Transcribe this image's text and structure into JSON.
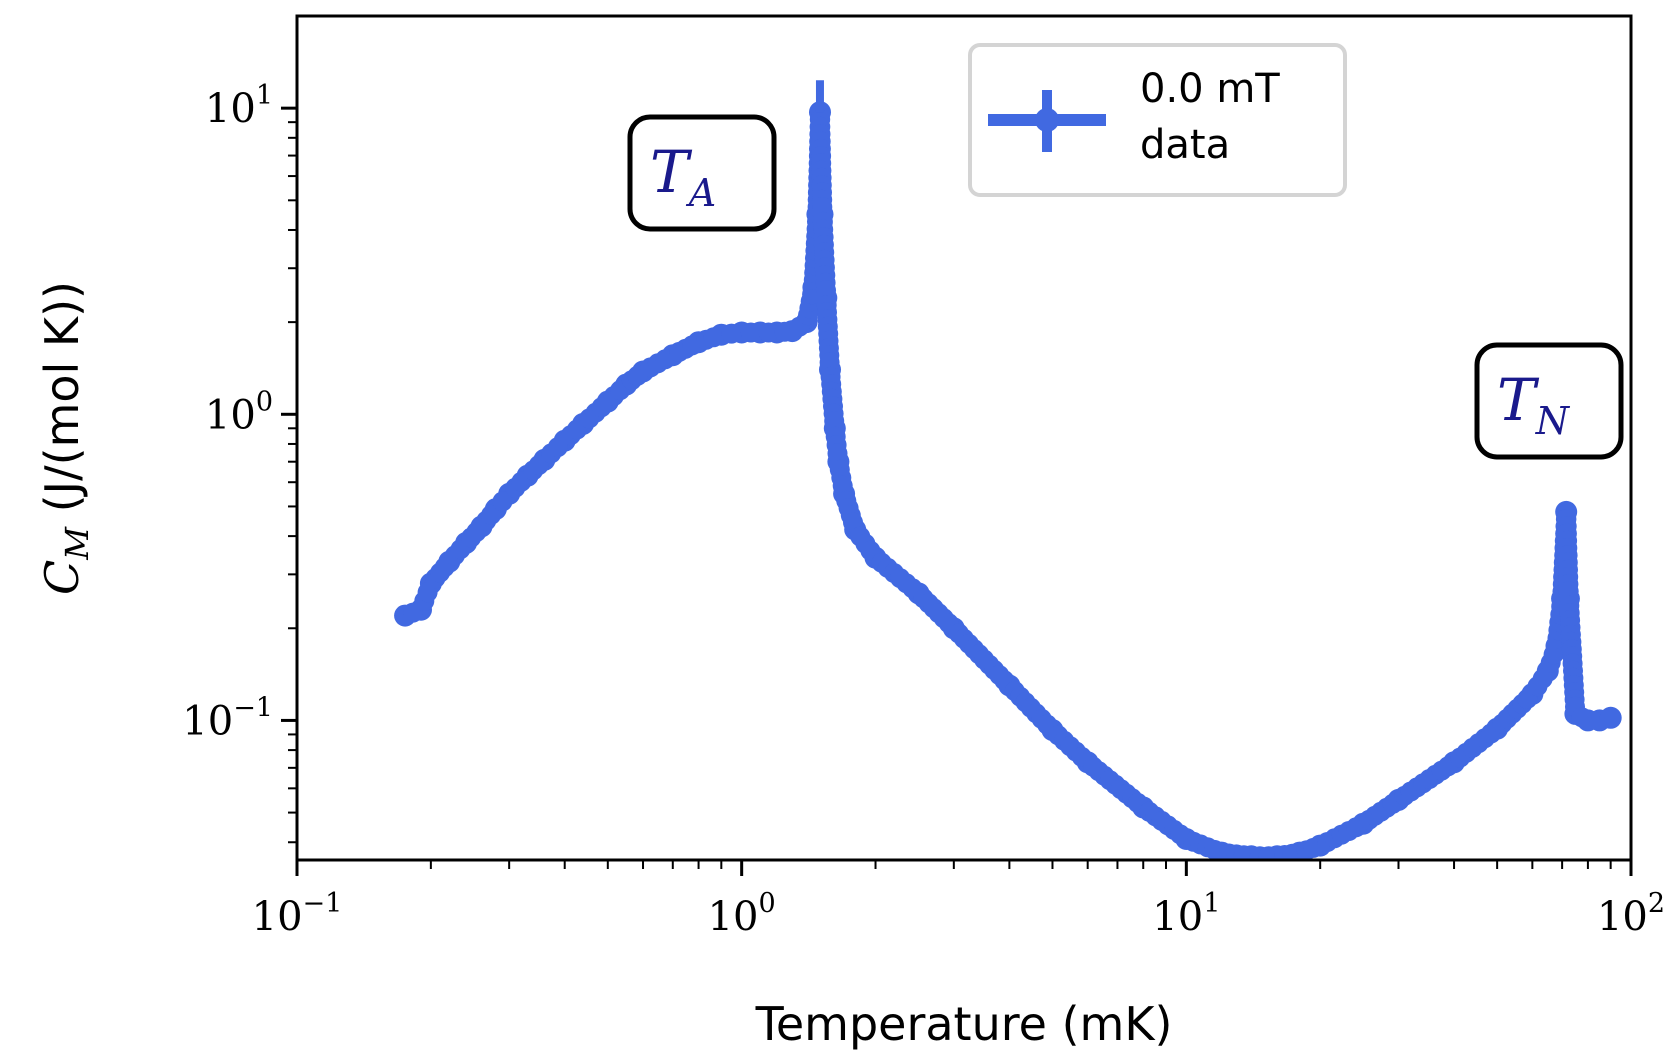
{
  "chart_data": {
    "type": "line",
    "xscale": "log",
    "yscale": "log",
    "xlim": [
      0.1,
      100
    ],
    "ylim": [
      0.035,
      20
    ],
    "xlabel": "Temperature (mK)",
    "ylabel": {
      "main": "C",
      "sub": "M",
      "units": " (J/(mol K))"
    },
    "xticks": [
      {
        "base": "10",
        "exp": "−1",
        "value": 0.1
      },
      {
        "base": "10",
        "exp": "0",
        "value": 1
      },
      {
        "base": "10",
        "exp": "1",
        "value": 10
      },
      {
        "base": "10",
        "exp": "2",
        "value": 100
      }
    ],
    "yticks": [
      {
        "base": "10",
        "exp": "−1",
        "value": 0.1
      },
      {
        "base": "10",
        "exp": "0",
        "value": 1
      },
      {
        "base": "10",
        "exp": "1",
        "value": 10
      }
    ],
    "legend": {
      "placement": "top-right",
      "line1": "0.0 mT",
      "line2": "data"
    },
    "annotations": [
      {
        "main": "T",
        "sub": "A",
        "x": 1.0,
        "y": 6.0
      },
      {
        "main": "T",
        "sub": "N",
        "x": 100,
        "y": 0.95
      }
    ],
    "series": [
      {
        "name": "0.0 mT data",
        "color": "#4169e1",
        "x": [
          0.175,
          0.19,
          0.2,
          0.22,
          0.24,
          0.26,
          0.28,
          0.3,
          0.33,
          0.36,
          0.4,
          0.44,
          0.5,
          0.55,
          0.6,
          0.7,
          0.8,
          0.9,
          1.0,
          1.1,
          1.2,
          1.3,
          1.4,
          1.45,
          1.48,
          1.5,
          1.52,
          1.55,
          1.58,
          1.62,
          1.65,
          1.7,
          1.8,
          2.0,
          2.5,
          3.0,
          4.0,
          5.0,
          6.0,
          8.0,
          10.0,
          12.0,
          14.0,
          16.0,
          18.0,
          20.0,
          25.0,
          30.0,
          40.0,
          50.0,
          60.0,
          65.0,
          68.0,
          70.0,
          71.5,
          72.5,
          75.0,
          80.0,
          85.0,
          90.0
        ],
        "y": [
          0.22,
          0.23,
          0.28,
          0.33,
          0.38,
          0.43,
          0.49,
          0.55,
          0.63,
          0.71,
          0.82,
          0.93,
          1.1,
          1.25,
          1.38,
          1.56,
          1.72,
          1.82,
          1.85,
          1.85,
          1.85,
          1.87,
          2.0,
          2.6,
          4.5,
          9.7,
          4.5,
          2.4,
          1.4,
          0.9,
          0.7,
          0.55,
          0.42,
          0.34,
          0.26,
          0.2,
          0.13,
          0.093,
          0.073,
          0.052,
          0.041,
          0.037,
          0.036,
          0.036,
          0.037,
          0.039,
          0.046,
          0.055,
          0.073,
          0.094,
          0.122,
          0.145,
          0.175,
          0.25,
          0.48,
          0.25,
          0.105,
          0.1,
          0.1,
          0.102
        ]
      }
    ]
  }
}
